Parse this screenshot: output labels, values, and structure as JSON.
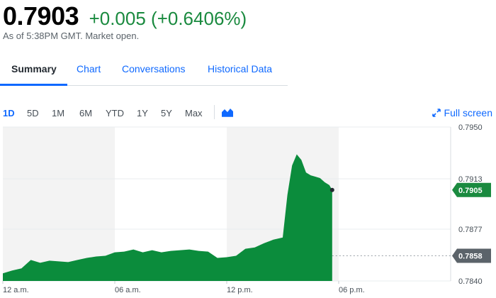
{
  "quote": {
    "price": "0.7903",
    "change": "+0.005 (+0.6406%)",
    "as_of": "As of 5:38PM GMT. Market open."
  },
  "tabs": [
    {
      "label": "Summary",
      "active": true
    },
    {
      "label": "Chart",
      "active": false
    },
    {
      "label": "Conversations",
      "active": false
    },
    {
      "label": "Historical Data",
      "active": false
    }
  ],
  "ranges": [
    {
      "label": "1D",
      "active": true
    },
    {
      "label": "5D",
      "active": false
    },
    {
      "label": "1M",
      "active": false
    },
    {
      "label": "6M",
      "active": false
    },
    {
      "label": "YTD",
      "active": false
    },
    {
      "label": "1Y",
      "active": false
    },
    {
      "label": "5Y",
      "active": false
    },
    {
      "label": "Max",
      "active": false
    }
  ],
  "chart_type_icon": "mountain-chart-icon",
  "fullscreen": {
    "label": "Full screen",
    "icon": "expand-arrows-icon"
  },
  "colors": {
    "up": "#1a8a3f",
    "area_fill": "#0b8c3c",
    "link": "#0f69ff",
    "prev_close_tag": "#5b636a",
    "shade": "#f3f3f3"
  },
  "chart_data": {
    "type": "area",
    "title": "",
    "xlabel": "",
    "ylabel": "",
    "x_ticks": [
      "12 a.m.",
      "06 a.m.",
      "12 p.m.",
      "06 p.m."
    ],
    "y_ticks": [
      "0.7950",
      "0.7913",
      "0.7877",
      "0.7840"
    ],
    "ylim": [
      0.784,
      0.795
    ],
    "xlim_hours": [
      0,
      24
    ],
    "current_value": "0.7905",
    "previous_close": "0.7858",
    "series": [
      {
        "values_x_hours": [
          0,
          0.5,
          1,
          1.5,
          2,
          2.5,
          3,
          3.5,
          4,
          4.5,
          5,
          5.5,
          6,
          6.5,
          7,
          7.5,
          8,
          8.5,
          9,
          9.5,
          10,
          10.5,
          11,
          11.5,
          12,
          12.5,
          13,
          13.5,
          14,
          14.5,
          15,
          15.25,
          15.5,
          15.75,
          16,
          16.25,
          16.5,
          16.75,
          17,
          17.25,
          17.5,
          17.65
        ],
        "values": [
          0.78455,
          0.78475,
          0.7849,
          0.7855,
          0.7853,
          0.78545,
          0.7854,
          0.78535,
          0.7855,
          0.78565,
          0.78575,
          0.7858,
          0.78605,
          0.7861,
          0.78625,
          0.78605,
          0.7862,
          0.78605,
          0.78615,
          0.7862,
          0.78625,
          0.78615,
          0.7861,
          0.78565,
          0.7857,
          0.7858,
          0.7863,
          0.7864,
          0.7867,
          0.78695,
          0.7871,
          0.79015,
          0.79225,
          0.79305,
          0.79265,
          0.79175,
          0.79155,
          0.79145,
          0.79135,
          0.79105,
          0.79085,
          0.7905
        ]
      }
    ]
  }
}
